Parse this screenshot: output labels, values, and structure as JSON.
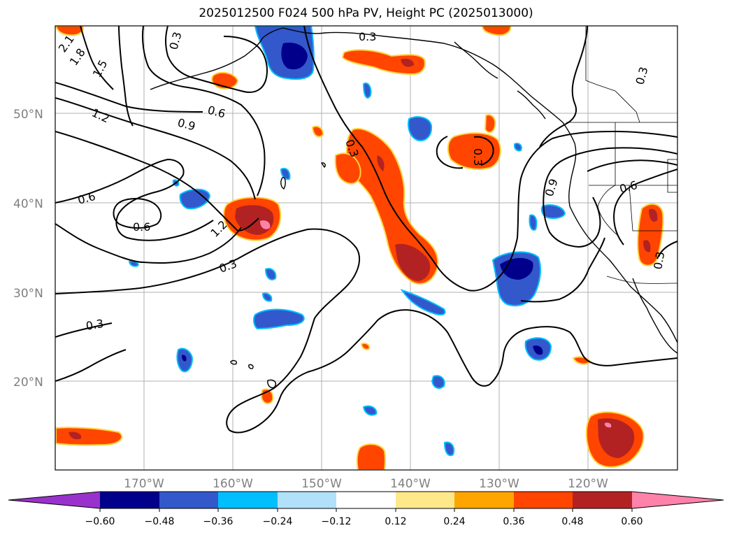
{
  "title": "2025012500 F024 500 hPa PV, Height PC (2025013000)",
  "map": {
    "lat_ticks": [
      "50°N",
      "40°N",
      "30°N",
      "20°N"
    ],
    "lon_ticks": [
      "170°W",
      "160°W",
      "150°W",
      "140°W",
      "130°W",
      "120°W"
    ]
  },
  "contour_labels": [
    "2.1",
    "1.8",
    "1.5",
    "1.2",
    "0.9",
    "0.6",
    "0.6",
    "0.6",
    "0.3",
    "0.3",
    "0.3",
    "0.3",
    "0.3",
    "1.2",
    "0.3",
    "0.3",
    "0.9",
    "0.6",
    "0.3"
  ],
  "colorbar": {
    "ticks": [
      "−0.60",
      "−0.48",
      "−0.36",
      "−0.24",
      "−0.12",
      "0.12",
      "0.24",
      "0.36",
      "0.48",
      "0.60"
    ],
    "colors": [
      "#9932cc",
      "#00008b",
      "#3358cc",
      "#00bfff",
      "#b0e0fa",
      "#ffffff",
      "#ffe88a",
      "#ffa500",
      "#ff4500",
      "#b22222",
      "#ff82ab"
    ]
  }
}
